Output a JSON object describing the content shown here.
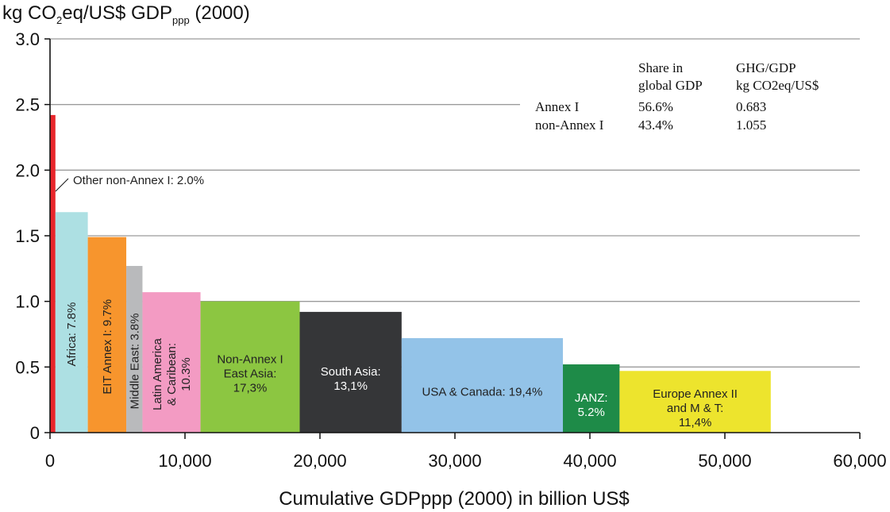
{
  "chart_data": {
    "type": "bar",
    "title": "kg CO2eq/US$ GDPppp (2000)",
    "title_parts": {
      "main": "kg CO",
      "sub1": "2",
      "mid": "eq/US$ GDP",
      "sub2": "ppp",
      "end": " (2000)"
    },
    "xlabel": "Cumulative GDPppp (2000) in billion US$",
    "xlim": [
      0,
      60000
    ],
    "ylim": [
      0,
      3.0
    ],
    "x_tick_labels": [
      "0",
      "10,000",
      "20,000",
      "30,000",
      "40,000",
      "50,000",
      "60,000"
    ],
    "y_tick_labels": [
      "0",
      "0.5",
      "1.0",
      "1.5",
      "2.0",
      "2.5",
      "3.0"
    ],
    "grid": true,
    "series": [
      {
        "label": "Other non-Annex I: 2.0%",
        "x_start": 0,
        "x_end": 400,
        "value": 2.42,
        "color": "#e8262b"
      },
      {
        "label": "Africa: 7.8%",
        "x_start": 400,
        "x_end": 2800,
        "value": 1.68,
        "color": "#ade0e3"
      },
      {
        "label": "EIT Annex I: 9.7%",
        "x_start": 2800,
        "x_end": 5650,
        "value": 1.49,
        "color": "#f7952d"
      },
      {
        "label": "Middle East: 3.8%",
        "x_start": 5650,
        "x_end": 6850,
        "value": 1.27,
        "color": "#b9babc"
      },
      {
        "label": "Latin America & Caribean: 10.3%",
        "x_start": 6850,
        "x_end": 11150,
        "value": 1.07,
        "color": "#f39bc3"
      },
      {
        "label": "Non-Annex I East Asia: 17,3%",
        "x_start": 11150,
        "x_end": 18500,
        "value": 1.0,
        "color": "#8cc641"
      },
      {
        "label": "South Asia: 13,1%",
        "x_start": 18500,
        "x_end": 26050,
        "value": 0.92,
        "color": "#353638"
      },
      {
        "label": "USA & Canada: 19,4%",
        "x_start": 26050,
        "x_end": 38000,
        "value": 0.72,
        "color": "#93c3e8"
      },
      {
        "label": "JANZ: 5.2%",
        "x_start": 38000,
        "x_end": 42200,
        "value": 0.52,
        "color": "#1e8b48"
      },
      {
        "label": "Europe Annex II and M & T: 11,4%",
        "x_start": 42200,
        "x_end": 53400,
        "value": 0.47,
        "color": "#ede42d"
      }
    ],
    "bar_text": [
      {
        "lines": [
          "Africa: 7.8%"
        ],
        "rotated": true,
        "color": "#222222"
      },
      {
        "lines": [
          "EIT Annex I: 9.7%"
        ],
        "rotated": true,
        "color": "#222222"
      },
      {
        "lines": [
          "Middle East: 3.8%"
        ],
        "rotated": true,
        "color": "#222222"
      },
      {
        "lines": [
          "Latin America",
          "& Caribean:",
          "10.3%"
        ],
        "rotated": true,
        "color": "#222222"
      },
      {
        "lines": [
          "Non-Annex I",
          "East Asia:",
          "17,3%"
        ],
        "rotated": false,
        "color": "#222222"
      },
      {
        "lines": [
          "South Asia:",
          "13,1%"
        ],
        "rotated": false,
        "color": "#ffffff"
      },
      {
        "lines": [
          "USA & Canada: 19,4%"
        ],
        "rotated": false,
        "color": "#222222"
      },
      {
        "lines": [
          "JANZ:",
          "5.2%"
        ],
        "rotated": false,
        "color": "#ffffff"
      },
      {
        "lines": [
          "Europe Annex II",
          "and M & T:",
          "11,4%"
        ],
        "rotated": false,
        "color": "#222222"
      }
    ],
    "annotation": "Other non-Annex I: 2.0%",
    "inset_table": {
      "headers": [
        [
          "Share in",
          "global GDP"
        ],
        [
          "GHG/GDP",
          "kg CO2eq/US$"
        ]
      ],
      "rows": [
        {
          "label": "Annex I",
          "share": "56.6%",
          "ghg": "0.683"
        },
        {
          "label": "non-Annex I",
          "share": "43.4%",
          "ghg": "1.055"
        }
      ]
    }
  }
}
